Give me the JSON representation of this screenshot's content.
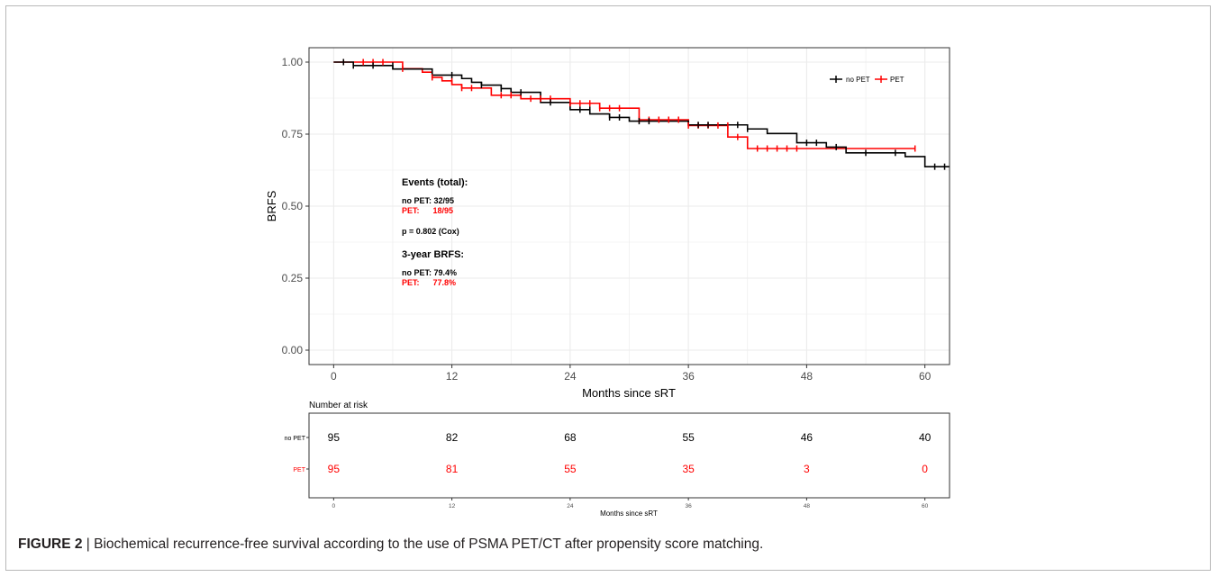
{
  "caption": {
    "label": "FIGURE 2",
    "separator": " | ",
    "text": "Biochemical recurrence-free survival according to the use of PSMA PET/CT after propensity score matching."
  },
  "colors": {
    "no_pet": "#000000",
    "pet": "#ff0000",
    "grid": "#ebebeb",
    "axis": "#4d4d4d"
  },
  "chart_data": [
    {
      "type": "line",
      "subtype": "kaplan-meier-step",
      "title": "",
      "xlabel": "Months since sRT",
      "ylabel": "BRFS",
      "xlim": [
        -2.5,
        62.5
      ],
      "ylim": [
        -0.05,
        1.05
      ],
      "x_ticks": [
        0,
        12,
        24,
        36,
        48,
        60
      ],
      "y_ticks": [
        0.0,
        0.25,
        0.5,
        0.75,
        1.0
      ],
      "y_tick_labels": [
        "0.00",
        "0.25",
        "0.50",
        "0.75",
        "1.00"
      ],
      "grid": true,
      "legend_position": "top-right",
      "series": [
        {
          "name": "no PET",
          "color": "#000000",
          "steps": [
            [
              0,
              1.0
            ],
            [
              2,
              0.988
            ],
            [
              6,
              0.976
            ],
            [
              10,
              0.955
            ],
            [
              13,
              0.943
            ],
            [
              14,
              0.93
            ],
            [
              15,
              0.92
            ],
            [
              17,
              0.908
            ],
            [
              18,
              0.895
            ],
            [
              21,
              0.86
            ],
            [
              24,
              0.835
            ],
            [
              26,
              0.82
            ],
            [
              28,
              0.808
            ],
            [
              30,
              0.795
            ],
            [
              36,
              0.782
            ],
            [
              42,
              0.768
            ],
            [
              44,
              0.752
            ],
            [
              47,
              0.72
            ],
            [
              50,
              0.705
            ],
            [
              52,
              0.685
            ],
            [
              58,
              0.672
            ],
            [
              60,
              0.637
            ]
          ],
          "x_end": 62.5,
          "censors": [
            [
              1,
              1.0
            ],
            [
              2,
              0.988
            ],
            [
              4,
              0.988
            ],
            [
              6,
              0.988
            ],
            [
              12,
              0.955
            ],
            [
              15,
              0.92
            ],
            [
              17,
              0.908
            ],
            [
              19,
              0.895
            ],
            [
              22,
              0.86
            ],
            [
              25,
              0.835
            ],
            [
              26,
              0.835
            ],
            [
              28,
              0.808
            ],
            [
              29,
              0.808
            ],
            [
              31,
              0.795
            ],
            [
              32,
              0.795
            ],
            [
              37,
              0.782
            ],
            [
              38,
              0.782
            ],
            [
              41,
              0.782
            ],
            [
              42,
              0.768
            ],
            [
              48,
              0.72
            ],
            [
              49,
              0.72
            ],
            [
              51,
              0.705
            ],
            [
              54,
              0.685
            ],
            [
              57,
              0.685
            ],
            [
              61,
              0.637
            ],
            [
              62,
              0.637
            ]
          ]
        },
        {
          "name": "PET",
          "color": "#ff0000",
          "steps": [
            [
              0,
              1.0
            ],
            [
              7,
              0.977
            ],
            [
              9,
              0.965
            ],
            [
              10,
              0.947
            ],
            [
              11,
              0.935
            ],
            [
              12,
              0.922
            ],
            [
              13,
              0.91
            ],
            [
              16,
              0.885
            ],
            [
              19,
              0.873
            ],
            [
              24,
              0.857
            ],
            [
              27,
              0.84
            ],
            [
              31,
              0.8
            ],
            [
              36,
              0.78
            ],
            [
              40,
              0.74
            ],
            [
              42,
              0.7
            ],
            [
              48,
              0.7
            ]
          ],
          "x_end": 59,
          "censors": [
            [
              1,
              1.0
            ],
            [
              3,
              1.0
            ],
            [
              4,
              1.0
            ],
            [
              5,
              1.0
            ],
            [
              7,
              0.977
            ],
            [
              10,
              0.947
            ],
            [
              12,
              0.935
            ],
            [
              13,
              0.91
            ],
            [
              14,
              0.91
            ],
            [
              17,
              0.885
            ],
            [
              18,
              0.885
            ],
            [
              19,
              0.885
            ],
            [
              20,
              0.873
            ],
            [
              21,
              0.873
            ],
            [
              22,
              0.873
            ],
            [
              24,
              0.857
            ],
            [
              25,
              0.857
            ],
            [
              26,
              0.857
            ],
            [
              27,
              0.84
            ],
            [
              28,
              0.84
            ],
            [
              29,
              0.84
            ],
            [
              31,
              0.8
            ],
            [
              32,
              0.8
            ],
            [
              33,
              0.8
            ],
            [
              34,
              0.8
            ],
            [
              35,
              0.8
            ],
            [
              36,
              0.78
            ],
            [
              37,
              0.78
            ],
            [
              38,
              0.78
            ],
            [
              39,
              0.78
            ],
            [
              40,
              0.78
            ],
            [
              41,
              0.74
            ],
            [
              43,
              0.7
            ],
            [
              44,
              0.7
            ],
            [
              45,
              0.7
            ],
            [
              46,
              0.7
            ],
            [
              47,
              0.7
            ],
            [
              59,
              0.7
            ]
          ]
        }
      ],
      "annotations": {
        "events_title": "Events (total):",
        "events_no_pet": "no PET: 32/95",
        "events_pet": "PET:      18/95",
        "p_value": "p = 0.802 (Cox)",
        "brfs_title": "3-year BRFS:",
        "brfs_no_pet": "no PET: 79.4%",
        "brfs_pet": "PET:      77.8%"
      }
    },
    {
      "type": "table",
      "title": "Number at risk",
      "xlabel": "Months since sRT",
      "x_ticks": [
        0,
        12,
        24,
        36,
        48,
        60
      ],
      "rows": [
        {
          "name": "no PET",
          "color": "#000000",
          "values": [
            95,
            82,
            68,
            55,
            46,
            40
          ]
        },
        {
          "name": "PET",
          "color": "#ff0000",
          "values": [
            95,
            81,
            55,
            35,
            3,
            0
          ]
        }
      ]
    }
  ]
}
